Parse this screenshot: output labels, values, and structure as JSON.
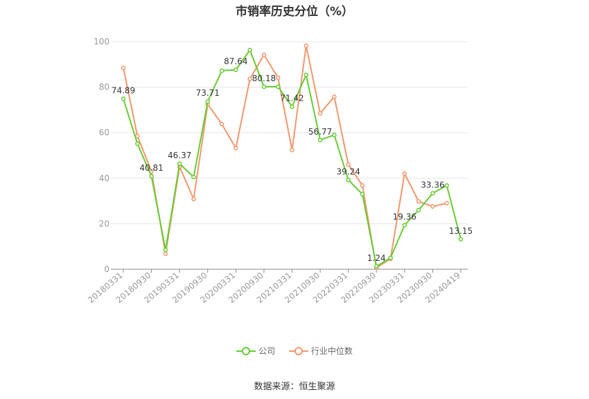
{
  "colors": {
    "company": "#66cc33",
    "industry": "#f4966b",
    "grid": "#e6e6e6",
    "axis": "#999999"
  },
  "chart_data": {
    "type": "line",
    "title": "市销率历史分位（%）",
    "ylim": [
      0,
      100
    ],
    "yticks": [
      0,
      20,
      40,
      60,
      80,
      100
    ],
    "xtick_labels": [
      "20180331",
      "20180930",
      "20190331",
      "20190930",
      "20200331",
      "20200930",
      "20210331",
      "20210930",
      "20220331",
      "20220930",
      "20230331",
      "20230930",
      "20240419"
    ],
    "x": [
      "20180331",
      "20180630",
      "20180930",
      "20181231",
      "20190331",
      "20190630",
      "20190930",
      "20191231",
      "20200331",
      "20200630",
      "20200930",
      "20201231",
      "20210331",
      "20210630",
      "20210930",
      "20211231",
      "20220331",
      "20220630",
      "20220930",
      "20221231",
      "20230331",
      "20230630",
      "20230930",
      "20231231",
      "20240419"
    ],
    "series": [
      {
        "name": "公司",
        "values": [
          74.89,
          55.2,
          40.81,
          8.5,
          46.37,
          40.5,
          73.71,
          87.2,
          87.64,
          96.3,
          80.18,
          80.2,
          71.42,
          85.4,
          56.77,
          59.0,
          39.24,
          33.0,
          1.24,
          5.0,
          19.36,
          26.0,
          33.36,
          36.8,
          13.15
        ]
      },
      {
        "name": "行业中位数",
        "values": [
          88.5,
          58.5,
          43.0,
          6.8,
          45.0,
          30.8,
          72.5,
          63.8,
          53.2,
          83.6,
          94.2,
          84.2,
          52.4,
          98.2,
          68.5,
          75.8,
          46.0,
          36.8,
          0.6,
          4.6,
          42.0,
          29.8,
          27.6,
          29.0,
          null
        ]
      }
    ],
    "data_labels": [
      {
        "index": 0,
        "text": "74.89"
      },
      {
        "index": 2,
        "text": "40.81"
      },
      {
        "index": 4,
        "text": "46.37"
      },
      {
        "index": 6,
        "text": "73.71"
      },
      {
        "index": 8,
        "text": "87.64"
      },
      {
        "index": 10,
        "text": "80.18"
      },
      {
        "index": 12,
        "text": "71.42"
      },
      {
        "index": 14,
        "text": "56.77"
      },
      {
        "index": 16,
        "text": "39.24"
      },
      {
        "index": 18,
        "text": "1.24"
      },
      {
        "index": 20,
        "text": "19.36"
      },
      {
        "index": 22,
        "text": "33.36"
      },
      {
        "index": 24,
        "text": "13.15"
      }
    ],
    "legend": [
      "公司",
      "行业中位数"
    ],
    "legend_position": "bottom",
    "grid": true
  },
  "source": "数据来源：恒生聚源"
}
